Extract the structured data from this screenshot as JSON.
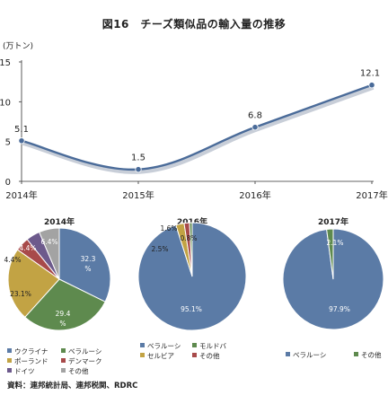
{
  "title": "図16　チーズ類似品の輸入量の推移",
  "unit": "(万トン)",
  "source": "資料：連邦統計局、連邦税関、RDRC",
  "chart_data": [
    {
      "type": "line",
      "x": [
        "2014年",
        "2015年",
        "2016年",
        "2017年"
      ],
      "series": [
        {
          "values": [
            5.1,
            1.5,
            6.8,
            12.1
          ]
        }
      ],
      "data_labels": [
        "5.1",
        "1.5",
        "6.8",
        "12.1"
      ],
      "yticks": [
        "0",
        "5",
        "10",
        "15"
      ],
      "ylim": [
        0,
        15
      ],
      "grid": false,
      "line_color": "#4a6b99"
    },
    {
      "type": "pie",
      "title": "2014年",
      "values": [
        32.3,
        29.4,
        23.1,
        4.4,
        4.4,
        6.4
      ],
      "labels": [
        "32.3\n%",
        "29.4\n%",
        "23.1%",
        "4.4%",
        "4.4%",
        "6.4%"
      ],
      "legend": [
        [
          "ウクライナ",
          "ベラルーシ"
        ],
        [
          "ポーランド",
          "デンマーク"
        ],
        [
          "ドイツ",
          "その他"
        ]
      ],
      "legend_colors": [
        [
          "#5b7ba6",
          "#5e8a4e"
        ],
        [
          "#c2a344",
          "#a84a4a"
        ],
        [
          "#6d5a8c",
          "#a3a3a3"
        ]
      ],
      "colors": [
        "#5b7ba6",
        "#5e8a4e",
        "#c2a344",
        "#a84a4a",
        "#6d5a8c",
        "#a3a3a3"
      ]
    },
    {
      "type": "pie",
      "title": "2016年",
      "values": [
        95.1,
        2.5,
        1.6,
        0.8
      ],
      "labels": [
        "95.1%",
        "2.5%",
        "1.6%",
        "0.8%"
      ],
      "legend": [
        [
          "ベラルーシ",
          "モルドバ"
        ],
        [
          "セルビア",
          "その他"
        ]
      ],
      "legend_colors": [
        [
          "#5b7ba6",
          "#5e8a4e"
        ],
        [
          "#c2a344",
          "#a84a4a"
        ]
      ],
      "colors": [
        "#5b7ba6",
        "#c2a344",
        "#a84a4a",
        "#5e8a4e"
      ]
    },
    {
      "type": "pie",
      "title": "2017年",
      "values": [
        97.9,
        2.1
      ],
      "labels": [
        "97.9%",
        "2.1%"
      ],
      "legend": [
        [
          "ベラルーシ",
          "その他"
        ]
      ],
      "legend_colors": [
        [
          "#5b7ba6",
          "#5e8a4e"
        ]
      ],
      "colors": [
        "#5b7ba6",
        "#5e8a4e"
      ]
    }
  ]
}
